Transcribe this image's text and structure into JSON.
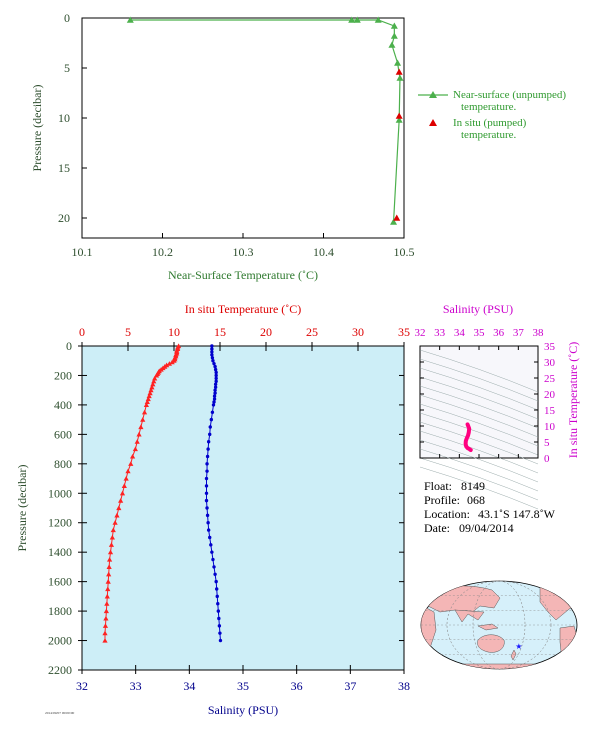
{
  "chart_data": [
    {
      "type": "line",
      "xlabel": "Near-Surface Temperature (˚C)",
      "ylabel": "Pressure (decibar)",
      "xlim": [
        10.1,
        10.5
      ],
      "ylim": [
        22,
        0
      ],
      "x_ticks": [
        "10.1",
        "10.2",
        "10.3",
        "10.4",
        "10.5"
      ],
      "y_ticks": [
        "0",
        "5",
        "10",
        "15",
        "20"
      ],
      "legend_position": "right",
      "series": [
        {
          "name": "Near-surface (unpumped) temperature.",
          "color": "#4cb04c",
          "marker": "triangle",
          "points": [
            {
              "x": 10.16,
              "y": 0.2
            },
            {
              "x": 10.435,
              "y": 0.2
            },
            {
              "x": 10.442,
              "y": 0.2
            },
            {
              "x": 10.468,
              "y": 0.2
            },
            {
              "x": 10.488,
              "y": 0.8
            },
            {
              "x": 10.488,
              "y": 1.8
            },
            {
              "x": 10.485,
              "y": 2.7
            },
            {
              "x": 10.492,
              "y": 4.5
            },
            {
              "x": 10.495,
              "y": 6.0
            },
            {
              "x": 10.494,
              "y": 10.2
            },
            {
              "x": 10.487,
              "y": 20.4
            }
          ]
        },
        {
          "name": "In situ (pumped) temperature.",
          "color": "#dd0000",
          "marker": "triangle",
          "points": [
            {
              "x": 10.494,
              "y": 5.4
            },
            {
              "x": 10.494,
              "y": 9.8
            },
            {
              "x": 10.491,
              "y": 20.0
            }
          ]
        }
      ]
    },
    {
      "type": "line",
      "top_axis_label": "In situ Temperature (˚C)",
      "bottom_axis_label": "Salinity (PSU)",
      "ylabel": "Pressure (decibar)",
      "temperature_xlim": [
        0,
        35
      ],
      "salinity_xlim": [
        32,
        38
      ],
      "ylim": [
        2200,
        0
      ],
      "temperature_ticks": [
        "0",
        "5",
        "10",
        "15",
        "20",
        "25",
        "30",
        "35"
      ],
      "salinity_ticks": [
        "32",
        "33",
        "34",
        "35",
        "36",
        "37",
        "38"
      ],
      "y_ticks": [
        "0",
        "200",
        "400",
        "600",
        "800",
        "1000",
        "1200",
        "1400",
        "1600",
        "1800",
        "2000",
        "2200"
      ],
      "background": "#cdeef7",
      "series": [
        {
          "name": "In situ Temperature",
          "color": "#ff2222",
          "marker": "triangle",
          "points": [
            {
              "p": 0,
              "v": 10.5
            },
            {
              "p": 10,
              "v": 10.4
            },
            {
              "p": 20,
              "v": 10.4
            },
            {
              "p": 30,
              "v": 10.3
            },
            {
              "p": 40,
              "v": 10.3
            },
            {
              "p": 50,
              "v": 10.3
            },
            {
              "p": 60,
              "v": 10.2
            },
            {
              "p": 70,
              "v": 10.2
            },
            {
              "p": 80,
              "v": 10.1
            },
            {
              "p": 90,
              "v": 10.1
            },
            {
              "p": 100,
              "v": 10.0
            },
            {
              "p": 110,
              "v": 9.8
            },
            {
              "p": 120,
              "v": 9.5
            },
            {
              "p": 130,
              "v": 9.2
            },
            {
              "p": 140,
              "v": 9.0
            },
            {
              "p": 150,
              "v": 8.8
            },
            {
              "p": 160,
              "v": 8.6
            },
            {
              "p": 170,
              "v": 8.4
            },
            {
              "p": 180,
              "v": 8.3
            },
            {
              "p": 190,
              "v": 8.2
            },
            {
              "p": 200,
              "v": 8.1
            },
            {
              "p": 220,
              "v": 7.9
            },
            {
              "p": 240,
              "v": 7.8
            },
            {
              "p": 260,
              "v": 7.7
            },
            {
              "p": 280,
              "v": 7.6
            },
            {
              "p": 300,
              "v": 7.5
            },
            {
              "p": 320,
              "v": 7.4
            },
            {
              "p": 340,
              "v": 7.3
            },
            {
              "p": 360,
              "v": 7.2
            },
            {
              "p": 380,
              "v": 7.1
            },
            {
              "p": 400,
              "v": 7.0
            },
            {
              "p": 450,
              "v": 6.8
            },
            {
              "p": 500,
              "v": 6.6
            },
            {
              "p": 550,
              "v": 6.4
            },
            {
              "p": 600,
              "v": 6.2
            },
            {
              "p": 650,
              "v": 6.0
            },
            {
              "p": 700,
              "v": 5.8
            },
            {
              "p": 750,
              "v": 5.5
            },
            {
              "p": 800,
              "v": 5.3
            },
            {
              "p": 850,
              "v": 5.0
            },
            {
              "p": 900,
              "v": 4.8
            },
            {
              "p": 950,
              "v": 4.6
            },
            {
              "p": 1000,
              "v": 4.4
            },
            {
              "p": 1050,
              "v": 4.2
            },
            {
              "p": 1100,
              "v": 4.0
            },
            {
              "p": 1150,
              "v": 3.8
            },
            {
              "p": 1200,
              "v": 3.6
            },
            {
              "p": 1250,
              "v": 3.4
            },
            {
              "p": 1300,
              "v": 3.3
            },
            {
              "p": 1350,
              "v": 3.2
            },
            {
              "p": 1400,
              "v": 3.1
            },
            {
              "p": 1450,
              "v": 3.0
            },
            {
              "p": 1500,
              "v": 2.95
            },
            {
              "p": 1550,
              "v": 2.9
            },
            {
              "p": 1600,
              "v": 2.85
            },
            {
              "p": 1650,
              "v": 2.8
            },
            {
              "p": 1700,
              "v": 2.75
            },
            {
              "p": 1750,
              "v": 2.7
            },
            {
              "p": 1800,
              "v": 2.65
            },
            {
              "p": 1850,
              "v": 2.6
            },
            {
              "p": 1900,
              "v": 2.55
            },
            {
              "p": 1950,
              "v": 2.5
            },
            {
              "p": 2000,
              "v": 2.5
            }
          ]
        },
        {
          "name": "Salinity",
          "color": "#0000cc",
          "marker": "dot",
          "points": [
            {
              "p": 0,
              "v": 34.42
            },
            {
              "p": 20,
              "v": 34.42
            },
            {
              "p": 40,
              "v": 34.42
            },
            {
              "p": 60,
              "v": 34.42
            },
            {
              "p": 80,
              "v": 34.43
            },
            {
              "p": 100,
              "v": 34.44
            },
            {
              "p": 120,
              "v": 34.46
            },
            {
              "p": 140,
              "v": 34.48
            },
            {
              "p": 160,
              "v": 34.49
            },
            {
              "p": 180,
              "v": 34.5
            },
            {
              "p": 200,
              "v": 34.5
            },
            {
              "p": 220,
              "v": 34.5
            },
            {
              "p": 240,
              "v": 34.5
            },
            {
              "p": 260,
              "v": 34.49
            },
            {
              "p": 280,
              "v": 34.49
            },
            {
              "p": 300,
              "v": 34.48
            },
            {
              "p": 320,
              "v": 34.48
            },
            {
              "p": 340,
              "v": 34.47
            },
            {
              "p": 360,
              "v": 34.47
            },
            {
              "p": 380,
              "v": 34.46
            },
            {
              "p": 400,
              "v": 34.45
            },
            {
              "p": 450,
              "v": 34.43
            },
            {
              "p": 500,
              "v": 34.41
            },
            {
              "p": 550,
              "v": 34.39
            },
            {
              "p": 600,
              "v": 34.38
            },
            {
              "p": 650,
              "v": 34.36
            },
            {
              "p": 700,
              "v": 34.35
            },
            {
              "p": 750,
              "v": 34.34
            },
            {
              "p": 800,
              "v": 34.33
            },
            {
              "p": 850,
              "v": 34.33
            },
            {
              "p": 900,
              "v": 34.32
            },
            {
              "p": 950,
              "v": 34.32
            },
            {
              "p": 1000,
              "v": 34.32
            },
            {
              "p": 1050,
              "v": 34.32
            },
            {
              "p": 1100,
              "v": 34.33
            },
            {
              "p": 1150,
              "v": 34.34
            },
            {
              "p": 1200,
              "v": 34.35
            },
            {
              "p": 1250,
              "v": 34.36
            },
            {
              "p": 1300,
              "v": 34.38
            },
            {
              "p": 1350,
              "v": 34.4
            },
            {
              "p": 1400,
              "v": 34.42
            },
            {
              "p": 1450,
              "v": 34.44
            },
            {
              "p": 1500,
              "v": 34.46
            },
            {
              "p": 1550,
              "v": 34.48
            },
            {
              "p": 1600,
              "v": 34.5
            },
            {
              "p": 1650,
              "v": 34.51
            },
            {
              "p": 1700,
              "v": 34.52
            },
            {
              "p": 1750,
              "v": 34.53
            },
            {
              "p": 1800,
              "v": 34.54
            },
            {
              "p": 1850,
              "v": 34.55
            },
            {
              "p": 1900,
              "v": 34.56
            },
            {
              "p": 1950,
              "v": 34.57
            },
            {
              "p": 2000,
              "v": 34.58
            }
          ]
        }
      ]
    },
    {
      "type": "scatter",
      "xlabel": "Salinity (PSU)",
      "ylabel": "In situ Temperature (˚C)",
      "xlim": [
        32,
        38
      ],
      "ylim": [
        0,
        35
      ],
      "x_ticks": [
        "32",
        "33",
        "34",
        "35",
        "36",
        "37",
        "38"
      ],
      "y_ticks": [
        "0",
        "5",
        "10",
        "15",
        "20",
        "25",
        "30",
        "35"
      ],
      "series": [
        {
          "name": "T-S",
          "color": "#ff0080",
          "points": [
            {
              "s": 34.42,
              "t": 10.5
            },
            {
              "s": 34.5,
              "t": 9.2
            },
            {
              "s": 34.48,
              "t": 8.0
            },
            {
              "s": 34.44,
              "t": 7.0
            },
            {
              "s": 34.38,
              "t": 6.2
            },
            {
              "s": 34.33,
              "t": 5.3
            },
            {
              "s": 34.32,
              "t": 4.4
            },
            {
              "s": 34.35,
              "t": 3.6
            },
            {
              "s": 34.42,
              "t": 3.1
            },
            {
              "s": 34.5,
              "t": 2.85
            },
            {
              "s": 34.55,
              "t": 2.6
            },
            {
              "s": 34.58,
              "t": 2.5
            }
          ]
        }
      ]
    }
  ],
  "info": {
    "float_label": "Float:",
    "float_value": "8149",
    "profile_label": "Profile:",
    "profile_value": "068",
    "location_label": "Location:",
    "location_value": "43.1˚S 147.8˚W",
    "date_label": "Date:",
    "date_value": "09/04/2014"
  },
  "map": {
    "ocean_color": "#d6f0fa",
    "land_color": "#f4b6b6",
    "marker_color": "#1a1aff",
    "marker_symbol": "★",
    "lat": -43.1,
    "lon": -147.8
  },
  "footer": {
    "tiny_text": "2014/09/07 00:00:00"
  }
}
